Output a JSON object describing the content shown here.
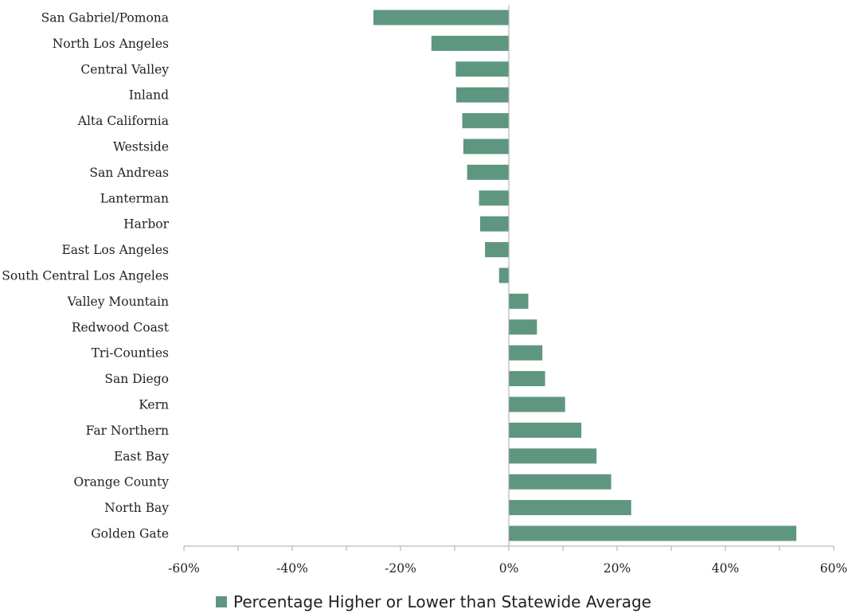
{
  "chart_data": {
    "type": "bar",
    "orientation": "horizontal",
    "categories": [
      "San Gabriel/Pomona",
      "North Los Angeles",
      "Central Valley",
      "Inland",
      "Alta California",
      "Westside",
      "San Andreas",
      "Lanterman",
      "Harbor",
      "East Los Angeles",
      "South Central Los Angeles",
      "Valley Mountain",
      "Redwood Coast",
      "Tri-Counties",
      "San Diego",
      "Kern",
      "Far Northern",
      "East Bay",
      "Orange County",
      "North Bay",
      "Golden Gate"
    ],
    "series": [
      {
        "name": "Percentage Higher or Lower than Statewide Average",
        "values": [
          -25,
          -14.3,
          -9.8,
          -9.7,
          -8.6,
          -8.4,
          -7.7,
          -5.5,
          -5.3,
          -4.4,
          -1.8,
          3.6,
          5.2,
          6.2,
          6.7,
          10.4,
          13.4,
          16.2,
          18.9,
          22.6,
          53.1
        ]
      }
    ],
    "xlim": [
      -60,
      60
    ],
    "xticks": [
      -60,
      -40,
      -20,
      0,
      20,
      40,
      60
    ],
    "xtick_labels": [
      "-60%",
      "-40%",
      "-20%",
      "0%",
      "20%",
      "40%",
      "60%"
    ],
    "minor_tick_step": 10,
    "grid": false,
    "legend_position": "bottom",
    "bar_color": "#5f9680",
    "axis_color": "#aaaaaa"
  }
}
